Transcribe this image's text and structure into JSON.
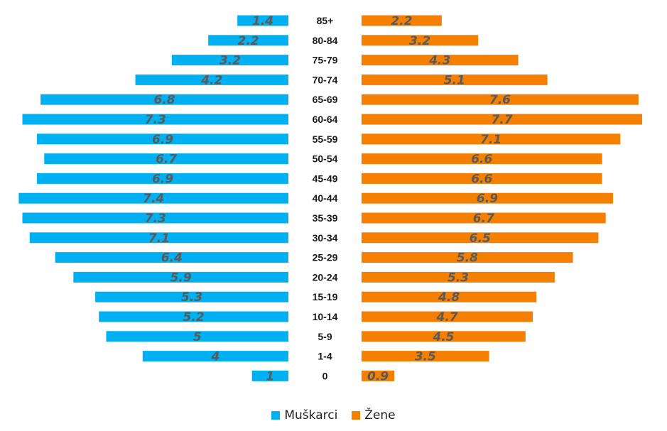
{
  "chart_data": {
    "type": "bar",
    "orientation": "horizontal",
    "layout": "population-pyramid",
    "categories": [
      "0",
      "1-4",
      "5-9",
      "10-14",
      "15-19",
      "20-24",
      "25-29",
      "30-34",
      "35-39",
      "40-44",
      "45-49",
      "50-54",
      "55-59",
      "60-64",
      "65-69",
      "70-74",
      "75-79",
      "80-84",
      "85+"
    ],
    "series": [
      {
        "name": "Muškarci",
        "color": "#00b0f0",
        "side": "left",
        "values": [
          1,
          4,
          5,
          5.2,
          5.3,
          5.9,
          6.4,
          7.1,
          7.3,
          7.4,
          6.9,
          6.7,
          6.9,
          7.3,
          6.8,
          4.2,
          3.2,
          2.2,
          1.4
        ]
      },
      {
        "name": "Žene",
        "color": "#f57f00",
        "side": "right",
        "values": [
          0.9,
          3.5,
          4.5,
          4.7,
          4.8,
          5.3,
          5.8,
          6.5,
          6.7,
          6.9,
          6.6,
          6.6,
          7.1,
          7.7,
          7.6,
          5.1,
          4.3,
          3.2,
          2.2
        ]
      }
    ],
    "title": "",
    "xlabel": "",
    "ylabel": "",
    "xlim": [
      0,
      7.7
    ],
    "data_labels": true,
    "grid": false,
    "legend_position": "bottom"
  }
}
